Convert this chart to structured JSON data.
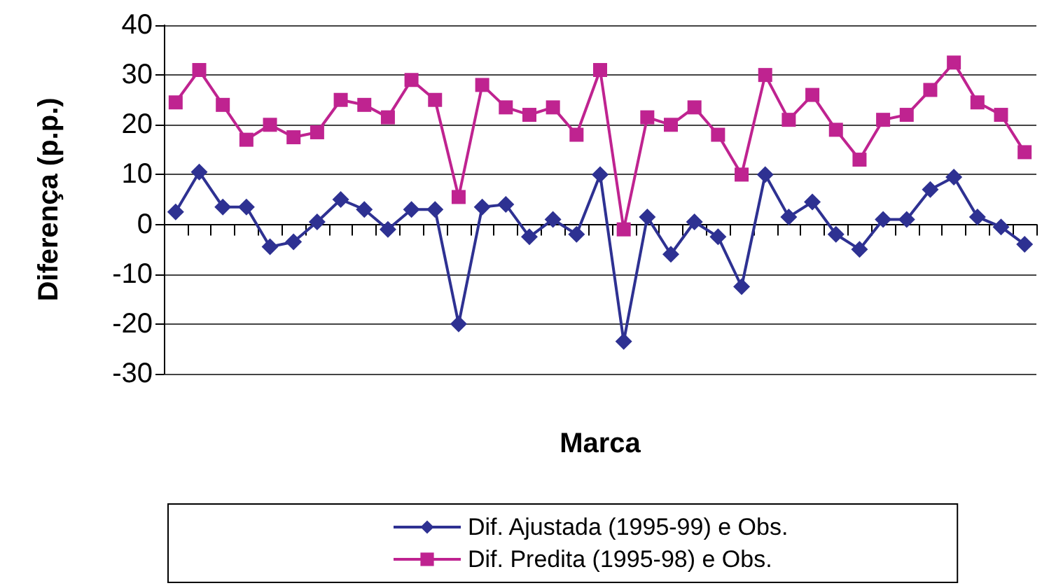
{
  "chart_data": {
    "type": "line",
    "xlabel": "Marca",
    "ylabel": "Diferença (p.p.)",
    "categories": [
      null,
      null,
      null,
      null,
      null,
      null,
      null,
      null,
      null,
      null,
      null,
      null,
      null,
      null,
      null,
      null,
      null,
      null,
      null,
      null,
      null,
      null,
      null,
      null,
      null,
      null,
      null,
      null,
      null,
      null,
      null,
      null,
      null,
      null,
      null,
      null,
      null
    ],
    "series": [
      {
        "name": "Dif. Ajustada (1995-99) e Obs.",
        "color": "#2e3192",
        "marker": "diamond",
        "values": [
          2.5,
          10.5,
          3.5,
          3.5,
          -4.5,
          -3.5,
          0.5,
          5,
          3,
          -1,
          3,
          3,
          -20,
          3.5,
          4,
          -2.5,
          1,
          -2,
          10,
          -23.5,
          1.5,
          -6,
          0.5,
          -2.5,
          -12.5,
          10,
          1.5,
          4.5,
          -2,
          -5,
          1,
          1,
          7,
          9.5,
          1.5,
          -0.5,
          -4
        ]
      },
      {
        "name": "Dif. Predita (1995-98) e Obs.",
        "color": "#bf2390",
        "marker": "square",
        "values": [
          24.5,
          31,
          24,
          17,
          20,
          17.5,
          18.5,
          25,
          24,
          21.5,
          29,
          25,
          5.5,
          28,
          23.5,
          22,
          23.5,
          18,
          31,
          -1,
          21.5,
          20,
          23.5,
          18,
          10,
          30,
          21,
          26,
          19,
          13,
          21,
          22,
          27,
          32.5,
          24.5,
          22,
          14.5
        ]
      }
    ],
    "ylim": [
      -30,
      40
    ],
    "yticks": [
      -30,
      -20,
      -10,
      0,
      10,
      20,
      30,
      40
    ],
    "grid": "y",
    "legend": "bottom",
    "tick_labels": "y"
  }
}
